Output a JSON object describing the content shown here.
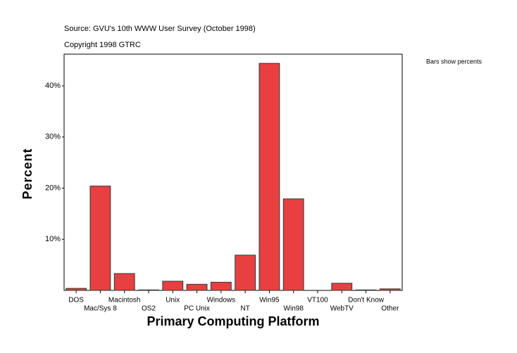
{
  "chart_data": {
    "type": "bar",
    "source": "Source: GVU's 10th WWW User Survey (October 1998)",
    "copyright": "Copyright 1998 GTRC",
    "note": "Bars show percents",
    "x_label": "Primary Computing Platform",
    "y_label": "Percent",
    "categories": [
      "DOS",
      "Mac/Sys 8",
      "Macintosh",
      "OS2",
      "Unix",
      "PC Unix",
      "Windows",
      "NT",
      "Win95",
      "Win98",
      "VT100",
      "WebTV",
      "Don't Know",
      "Other"
    ],
    "values": [
      0.4,
      20.4,
      3.3,
      0.1,
      1.8,
      1.2,
      1.6,
      6.9,
      44.4,
      17.9,
      0.0,
      1.4,
      0.1,
      0.3
    ],
    "color": "#e84040",
    "ylim": [
      0,
      46.2
    ],
    "yticks": [
      {
        "value": 10,
        "label": "10%"
      },
      {
        "value": 20,
        "label": "20%"
      },
      {
        "value": 30,
        "label": "30%"
      },
      {
        "value": 40,
        "label": "40%"
      }
    ]
  }
}
